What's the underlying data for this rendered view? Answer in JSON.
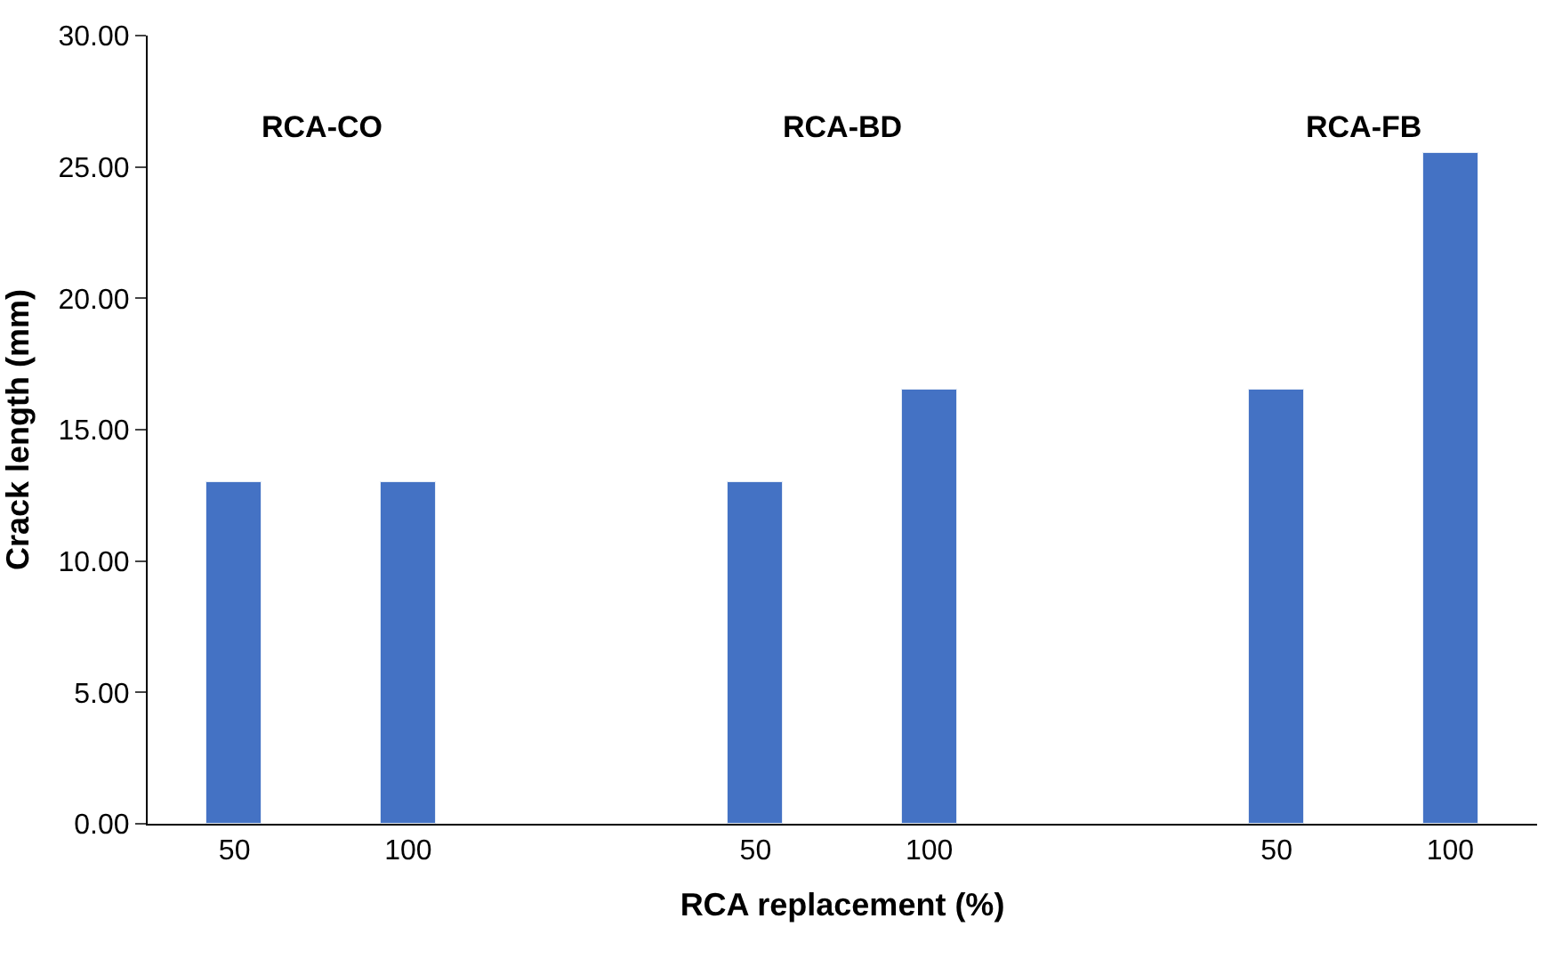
{
  "chart_data": {
    "type": "bar",
    "xlabel": "RCA replacement (%)",
    "ylabel": "Crack length (mm)",
    "categories": [
      "50",
      "100",
      null,
      "50",
      "100",
      null,
      "50",
      "100"
    ],
    "values": [
      13,
      13,
      null,
      13,
      16.5,
      null,
      16.5,
      25.5
    ],
    "color": "#4472c4",
    "ylim": [
      0,
      30
    ],
    "yticks": [
      {
        "value": 0,
        "label": "0.00"
      },
      {
        "value": 5,
        "label": "5.00"
      },
      {
        "value": 10,
        "label": "10.00"
      },
      {
        "value": 15,
        "label": "15.00"
      },
      {
        "value": 20,
        "label": "20.00"
      },
      {
        "value": 25,
        "label": "25.00"
      },
      {
        "value": 30,
        "label": "30.00"
      }
    ],
    "annotations": [
      "RCA-CO",
      "RCA-BD",
      "RCA-FB"
    ],
    "legend": false
  }
}
